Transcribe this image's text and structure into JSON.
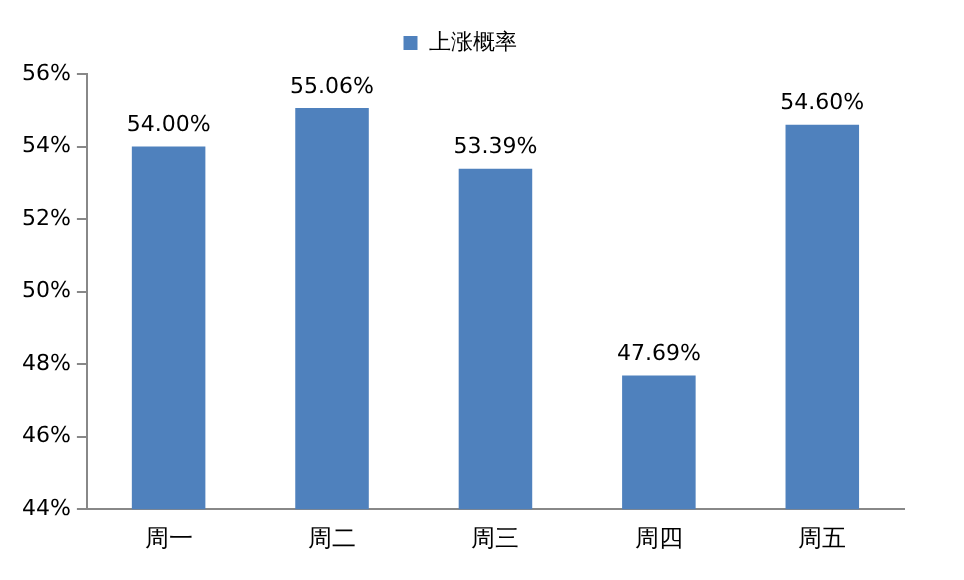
{
  "chart_data": {
    "type": "bar",
    "categories": [
      "周一",
      "周二",
      "周三",
      "周四",
      "周五"
    ],
    "series": [
      {
        "name": "上涨概率",
        "color": "#4f81bd",
        "values": [
          54.0,
          55.06,
          53.39,
          47.69,
          54.6
        ],
        "value_labels": [
          "54.00%",
          "55.06%",
          "53.39%",
          "47.69%",
          "54.60%"
        ]
      }
    ],
    "ylim": [
      44,
      56
    ],
    "yticks": [
      {
        "value": 44,
        "label": "44%"
      },
      {
        "value": 46,
        "label": "46%"
      },
      {
        "value": 48,
        "label": "48%"
      },
      {
        "value": 50,
        "label": "50%"
      },
      {
        "value": 52,
        "label": "52%"
      },
      {
        "value": 54,
        "label": "54%"
      },
      {
        "value": 56,
        "label": "56%"
      }
    ],
    "grid": false,
    "legend": "top"
  }
}
